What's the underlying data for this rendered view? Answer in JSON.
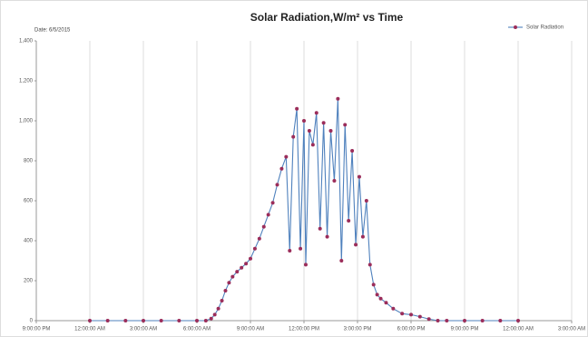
{
  "chart_data": {
    "type": "line",
    "title": "Solar Radiation,W/m² vs Time",
    "subtitle": "Date: 6/5/2015",
    "x": [
      0,
      1,
      2,
      3,
      4,
      5,
      6,
      6.5,
      6.8,
      7.0,
      7.2,
      7.4,
      7.6,
      7.8,
      8.0,
      8.25,
      8.5,
      8.75,
      9.0,
      9.25,
      9.5,
      9.75,
      10.0,
      10.25,
      10.5,
      10.75,
      11.0,
      11.2,
      11.4,
      11.6,
      11.8,
      12.0,
      12.1,
      12.3,
      12.5,
      12.7,
      12.9,
      13.1,
      13.3,
      13.5,
      13.7,
      13.9,
      14.1,
      14.3,
      14.5,
      14.7,
      14.9,
      15.1,
      15.3,
      15.5,
      15.7,
      15.9,
      16.1,
      16.3,
      16.6,
      17.0,
      17.5,
      18.0,
      18.5,
      19.0,
      19.5,
      20,
      21,
      22,
      23,
      24
    ],
    "series": [
      {
        "name": "Solar Radiation",
        "color": "#4f81bd",
        "marker_color": "#9b2d5a",
        "values": [
          0,
          0,
          0,
          0,
          0,
          0,
          0,
          0,
          10,
          30,
          60,
          100,
          150,
          190,
          220,
          245,
          265,
          285,
          310,
          360,
          410,
          470,
          530,
          590,
          680,
          760,
          820,
          350,
          920,
          1060,
          360,
          1000,
          280,
          950,
          880,
          1040,
          460,
          990,
          420,
          950,
          700,
          1110,
          300,
          980,
          500,
          850,
          380,
          720,
          420,
          600,
          280,
          180,
          130,
          110,
          90,
          60,
          35,
          30,
          20,
          8,
          0,
          0,
          0,
          0,
          0,
          0
        ]
      }
    ],
    "xlim": [
      -3,
      27
    ],
    "xticks": [
      {
        "value": -3,
        "label": "9:00:00 PM"
      },
      {
        "value": 0,
        "label": "12:00:00 AM"
      },
      {
        "value": 3,
        "label": "3:00:00 AM"
      },
      {
        "value": 6,
        "label": "6:00:00 AM"
      },
      {
        "value": 9,
        "label": "9:00:00 AM"
      },
      {
        "value": 12,
        "label": "12:00:00 PM"
      },
      {
        "value": 15,
        "label": "3:00:00 PM"
      },
      {
        "value": 18,
        "label": "6:00:00 PM"
      },
      {
        "value": 21,
        "label": "9:00:00 PM"
      },
      {
        "value": 24,
        "label": "12:00:00 AM"
      },
      {
        "value": 27,
        "label": "3:00:00 AM"
      }
    ],
    "ylim": [
      0,
      1400
    ],
    "yticks": [
      0,
      200,
      400,
      600,
      800,
      {
        "value": 1000,
        "label": "1,000"
      },
      {
        "value": 1200,
        "label": "1,200"
      },
      {
        "value": 1400,
        "label": "1,400"
      }
    ],
    "grid": "x",
    "legend": "top-right"
  }
}
